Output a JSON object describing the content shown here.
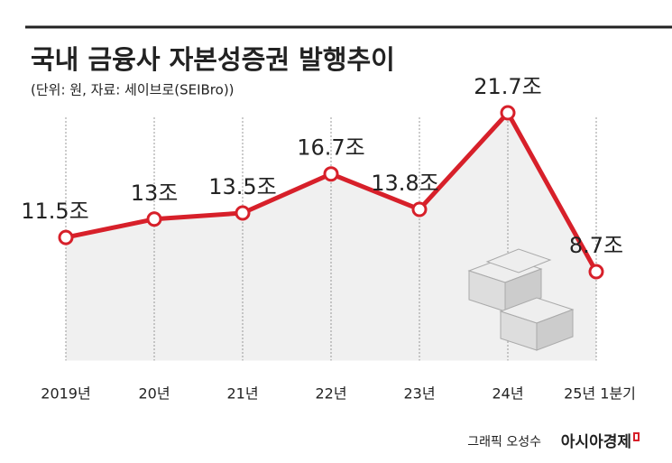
{
  "chart_data": {
    "type": "line",
    "title": "국내 금융사 자본성증권 발행추이",
    "subtitle": "(단위: 원, 자료: 세이브로(SEIBro))",
    "categories": [
      "2019년",
      "20년",
      "21년",
      "22년",
      "23년",
      "24년",
      "25년 1분기"
    ],
    "values": [
      11.5,
      13,
      13.5,
      16.7,
      13.8,
      21.7,
      8.7
    ],
    "value_labels": [
      "11.5조",
      "13조",
      "13.5조",
      "16.7조",
      "13.8조",
      "21.7조",
      "8.7조"
    ],
    "color": "#d7202a",
    "credit": "그래픽 오성수",
    "brand": "아시아경제"
  }
}
